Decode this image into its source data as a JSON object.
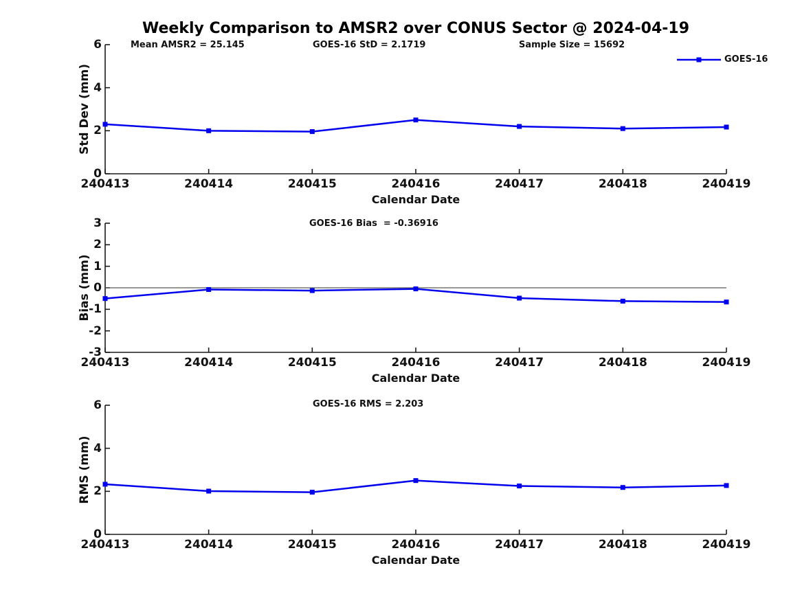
{
  "chart_data": {
    "type": "line",
    "title": "Weekly Comparison to AMSR2 over CONUS Sector @ 2024-04-19",
    "xlabel": "Calendar Date",
    "categories": [
      "240413",
      "240414",
      "240415",
      "240416",
      "240417",
      "240418",
      "240419"
    ],
    "series_name": "GOES-16",
    "line_color": "#0000EE",
    "marker": "filled-square",
    "axis_color": "#1a1a1a",
    "zero_line_color": "#595959",
    "legend": {
      "label": "GOES-16",
      "position": "top-right"
    },
    "subplots": [
      {
        "name": "std_dev",
        "ylabel": "Std Dev (mm)",
        "ylim": [
          0,
          6
        ],
        "yticks": [
          0,
          2,
          4,
          6
        ],
        "values": [
          2.3,
          2.0,
          1.96,
          2.5,
          2.2,
          2.1,
          2.17
        ],
        "annotations": [
          "Mean AMSR2 = 25.145",
          "GOES-16 StD = 2.1719",
          "Sample Size = 15692"
        ]
      },
      {
        "name": "bias",
        "ylabel": "Bias (mm)",
        "ylim": [
          -3,
          3
        ],
        "yticks": [
          -3,
          -2,
          -1,
          0,
          1,
          2,
          3
        ],
        "zero_line": true,
        "values": [
          -0.5,
          -0.08,
          -0.13,
          -0.05,
          -0.48,
          -0.62,
          -0.66
        ],
        "annotations": [
          "GOES-16 Bias  = -0.36916"
        ]
      },
      {
        "name": "rms",
        "ylabel": "RMS (mm)",
        "ylim": [
          0,
          6
        ],
        "yticks": [
          0,
          2,
          4,
          6
        ],
        "values": [
          2.33,
          2.01,
          1.96,
          2.5,
          2.25,
          2.18,
          2.27
        ],
        "annotations": [
          "GOES-16 RMS = 2.203"
        ]
      }
    ]
  }
}
